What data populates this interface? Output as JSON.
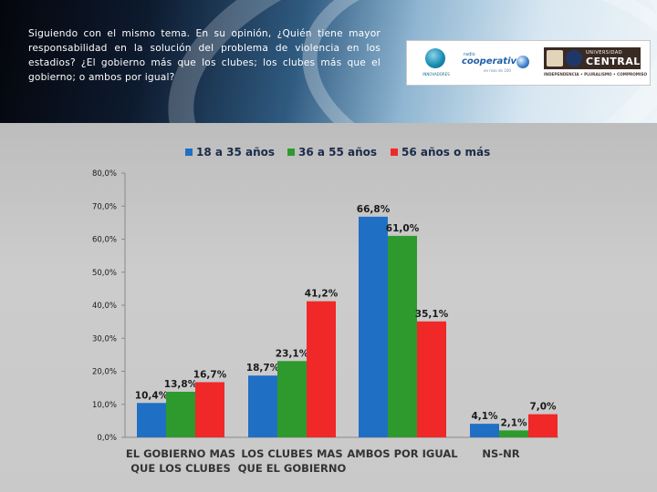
{
  "header": {
    "question": "Siguiendo con el mismo tema. En su opinión, ¿Quién tiene mayor responsabilidad en la solución del problema de violencia en los estadios? ¿El gobierno más que los clubes; los clubes más que el gobierno; o ambos por igual?"
  },
  "logos": {
    "innovadores": {
      "text": "INNOVADORES",
      "icon": "globe-icon"
    },
    "cooperativa": {
      "small": "radio",
      "main": "cooperativa",
      "tag": "en más de 100"
    },
    "ucentral": {
      "top": "UNIVERSIDAD",
      "main": "CENTRAL",
      "motto": "INDEPENDENCIA • PLURALISMO • COMPROMISO"
    }
  },
  "chart_data": {
    "type": "bar",
    "categories": [
      [
        "EL GOBIERNO MAS",
        "QUE LOS CLUBES"
      ],
      [
        "LOS CLUBES MAS",
        "QUE EL GOBIERNO"
      ],
      [
        "AMBOS POR IGUAL"
      ],
      [
        "NS-NR"
      ]
    ],
    "series": [
      {
        "name": "18 a 35 años",
        "color": "#1f6fc5",
        "values": [
          10.4,
          18.7,
          66.8,
          4.1
        ],
        "labels": [
          "10,4%",
          "18,7%",
          "66,8%",
          "4,1%"
        ]
      },
      {
        "name": "36 a 55 años",
        "color": "#2e9a2e",
        "values": [
          13.8,
          23.1,
          61.0,
          2.1
        ],
        "labels": [
          "13,8%",
          "23,1%",
          "61,0%",
          "2,1%"
        ]
      },
      {
        "name": "56 años o más",
        "color": "#f02828",
        "values": [
          16.7,
          41.2,
          35.1,
          7.0
        ],
        "labels": [
          "16,7%",
          "41,2%",
          "35,1%",
          "7,0%"
        ]
      }
    ],
    "yticks": [
      0,
      10,
      20,
      30,
      40,
      50,
      60,
      70,
      80
    ],
    "ytick_labels": [
      "0,0%",
      "10,0%",
      "20,0%",
      "30,0%",
      "40,0%",
      "50,0%",
      "60,0%",
      "70,0%",
      "80,0%"
    ],
    "ylim": [
      0,
      80
    ],
    "grid": false,
    "legend_position": "top"
  }
}
